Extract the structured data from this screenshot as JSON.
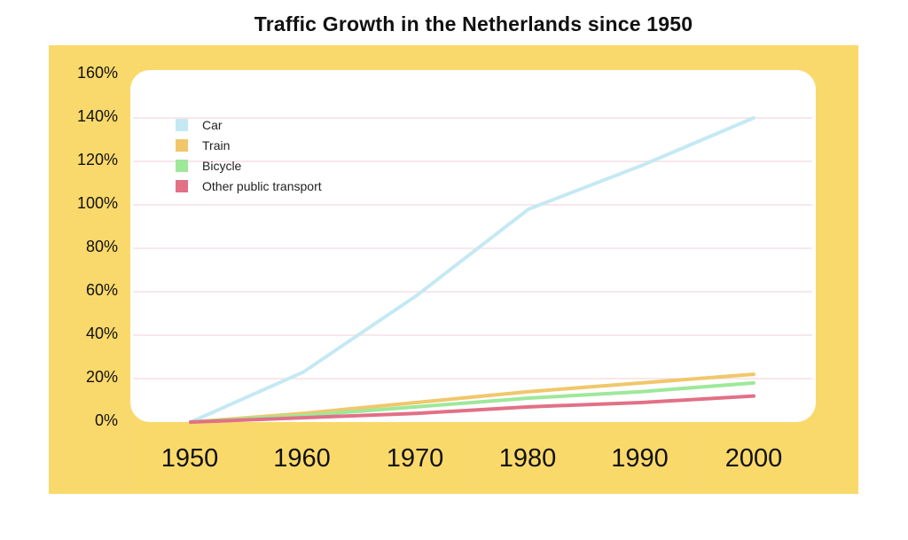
{
  "chart_data": {
    "type": "line",
    "title": "Traffic Growth in the Netherlands since 1950",
    "xlabel": "",
    "ylabel": "",
    "x": [
      1950,
      1960,
      1970,
      1980,
      1990,
      2000
    ],
    "x_tick_labels": [
      "1950",
      "1960",
      "1970",
      "1980",
      "1990",
      "2000"
    ],
    "y_tick_labels": [
      "0%",
      "20%",
      "40%",
      "60%",
      "80%",
      "100%",
      "120%",
      "140%",
      "160%"
    ],
    "ylim": [
      0,
      160
    ],
    "grid": true,
    "legend": "top-left",
    "series": [
      {
        "name": "Car",
        "color": "#c5e9f3",
        "values": [
          0,
          23,
          58,
          98,
          118,
          140
        ]
      },
      {
        "name": "Train",
        "color": "#f0c76b",
        "values": [
          0,
          4,
          9,
          14,
          18,
          22
        ]
      },
      {
        "name": "Bicycle",
        "color": "#9ee89a",
        "values": [
          0,
          3,
          7,
          11,
          14,
          18
        ]
      },
      {
        "name": "Other public transport",
        "color": "#e27086",
        "values": [
          0,
          2,
          4,
          7,
          9,
          12
        ]
      }
    ]
  }
}
